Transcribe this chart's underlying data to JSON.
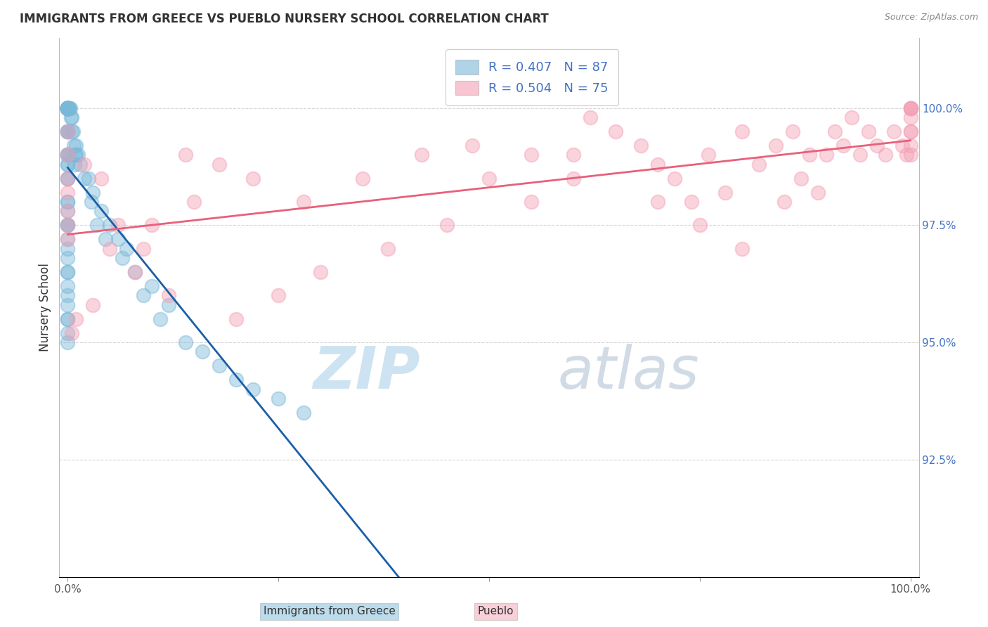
{
  "title": "IMMIGRANTS FROM GREECE VS PUEBLO NURSERY SCHOOL CORRELATION CHART",
  "source_text": "Source: ZipAtlas.com",
  "ylabel": "Nursery School",
  "legend_label1": "Immigrants from Greece",
  "legend_label2": "Pueblo",
  "r1": 0.407,
  "n1": 87,
  "r2": 0.504,
  "n2": 75,
  "blue_color": "#7ab8d9",
  "pink_color": "#f4a0b5",
  "blue_line_color": "#1a5fa8",
  "pink_line_color": "#e8607a",
  "right_yticks": [
    92.5,
    95.0,
    97.5,
    100.0
  ],
  "background_color": "#ffffff",
  "grid_color": "#cccccc",
  "ymin": 90.0,
  "ymax": 101.5,
  "xmin": 0.0,
  "xmax": 100.0,
  "blue_x": [
    0.0,
    0.0,
    0.0,
    0.0,
    0.0,
    0.0,
    0.0,
    0.0,
    0.0,
    0.0,
    0.0,
    0.0,
    0.0,
    0.0,
    0.0,
    0.0,
    0.0,
    0.0,
    0.0,
    0.0,
    0.0,
    0.0,
    0.0,
    0.0,
    0.0,
    0.0,
    0.0,
    0.0,
    0.0,
    0.0,
    0.0,
    0.0,
    0.0,
    0.0,
    0.0,
    0.0,
    0.0,
    0.0,
    0.0,
    0.0,
    0.0,
    0.0,
    0.0,
    0.0,
    0.0,
    0.0,
    0.0,
    0.0,
    0.0,
    0.0,
    0.5,
    0.5,
    1.0,
    1.0,
    1.5,
    2.0,
    3.0,
    4.0,
    5.0,
    6.0,
    7.0,
    8.0,
    10.0,
    12.0,
    2.5,
    3.5,
    1.2,
    0.8,
    2.8,
    4.5,
    6.5,
    9.0,
    11.0,
    14.0,
    16.0,
    18.0,
    20.0,
    22.0,
    25.0,
    28.0,
    0.2,
    0.3,
    0.1,
    0.4,
    0.6,
    0.7,
    0.9
  ],
  "blue_y": [
    100.0,
    100.0,
    100.0,
    100.0,
    100.0,
    100.0,
    100.0,
    100.0,
    100.0,
    100.0,
    100.0,
    100.0,
    100.0,
    100.0,
    100.0,
    100.0,
    100.0,
    100.0,
    100.0,
    100.0,
    99.5,
    99.5,
    99.5,
    99.5,
    99.0,
    99.0,
    99.0,
    99.0,
    98.8,
    98.8,
    98.5,
    98.5,
    98.0,
    98.0,
    97.8,
    97.5,
    97.5,
    97.5,
    97.2,
    97.0,
    96.8,
    96.5,
    96.5,
    96.2,
    96.0,
    95.8,
    95.5,
    95.5,
    95.2,
    95.0,
    99.8,
    99.5,
    99.2,
    99.0,
    98.8,
    98.5,
    98.2,
    97.8,
    97.5,
    97.2,
    97.0,
    96.5,
    96.2,
    95.8,
    98.5,
    97.5,
    99.0,
    98.8,
    98.0,
    97.2,
    96.8,
    96.0,
    95.5,
    95.0,
    94.8,
    94.5,
    94.2,
    94.0,
    93.8,
    93.5,
    100.0,
    100.0,
    100.0,
    99.8,
    99.5,
    99.2,
    99.0
  ],
  "pink_x": [
    0.0,
    0.0,
    0.0,
    0.0,
    0.0,
    0.0,
    0.0,
    2.0,
    4.0,
    6.0,
    9.0,
    14.0,
    18.0,
    22.0,
    28.0,
    35.0,
    42.0,
    48.0,
    55.0,
    60.0,
    62.0,
    65.0,
    68.0,
    70.0,
    72.0,
    74.0,
    76.0,
    78.0,
    80.0,
    82.0,
    84.0,
    85.0,
    86.0,
    87.0,
    88.0,
    89.0,
    90.0,
    91.0,
    92.0,
    93.0,
    94.0,
    95.0,
    96.0,
    97.0,
    98.0,
    99.0,
    99.5,
    100.0,
    100.0,
    100.0,
    100.0,
    100.0,
    100.0,
    100.0,
    100.0,
    100.0,
    50.0,
    55.0,
    45.0,
    38.0,
    30.0,
    25.0,
    20.0,
    15.0,
    10.0,
    5.0,
    8.0,
    12.0,
    3.0,
    1.0,
    0.5,
    60.0,
    70.0,
    75.0,
    80.0
  ],
  "pink_y": [
    99.5,
    99.0,
    98.5,
    98.2,
    97.8,
    97.5,
    97.2,
    98.8,
    98.5,
    97.5,
    97.0,
    99.0,
    98.8,
    98.5,
    98.0,
    98.5,
    99.0,
    99.2,
    99.0,
    98.5,
    99.8,
    99.5,
    99.2,
    98.8,
    98.5,
    98.0,
    99.0,
    98.2,
    99.5,
    98.8,
    99.2,
    98.0,
    99.5,
    98.5,
    99.0,
    98.2,
    99.0,
    99.5,
    99.2,
    99.8,
    99.0,
    99.5,
    99.2,
    99.0,
    99.5,
    99.2,
    99.0,
    100.0,
    100.0,
    100.0,
    100.0,
    99.8,
    99.5,
    99.5,
    99.2,
    99.0,
    98.5,
    98.0,
    97.5,
    97.0,
    96.5,
    96.0,
    95.5,
    98.0,
    97.5,
    97.0,
    96.5,
    96.0,
    95.8,
    95.5,
    95.2,
    99.0,
    98.0,
    97.5,
    97.0
  ]
}
